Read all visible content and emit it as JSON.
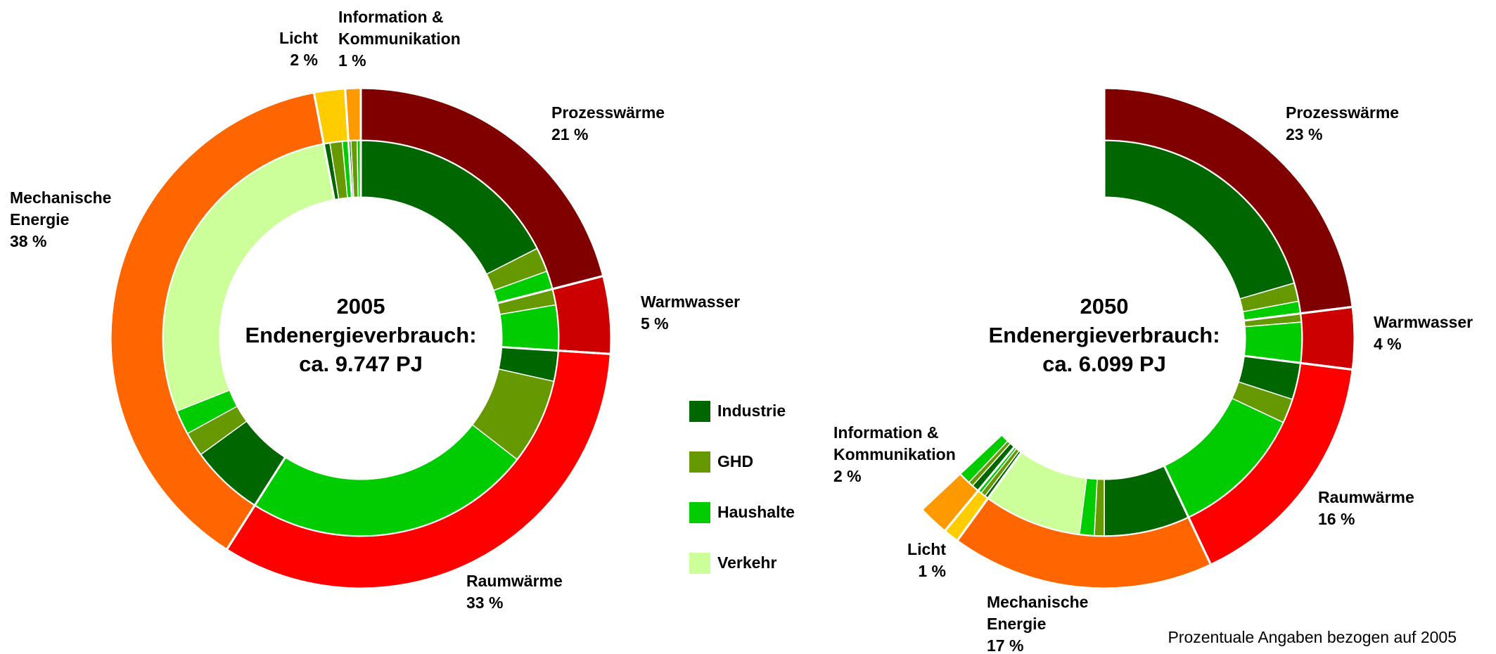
{
  "chart_data": {
    "type": "nested-donut",
    "categories": [
      "Prozesswärme",
      "Warmwasser",
      "Raumwärme",
      "Mechanische Energie",
      "Licht",
      "Information & Kommunikation"
    ],
    "category_colors": [
      "#800000",
      "#cc0000",
      "#ff0000",
      "#ff6600",
      "#ffcc00",
      "#ff9900"
    ],
    "series": [
      {
        "name": "Industrie",
        "color": "#006600"
      },
      {
        "name": "GHD",
        "color": "#669900"
      },
      {
        "name": "Haushalte",
        "color": "#00cc00"
      },
      {
        "name": "Verkehr",
        "color": "#ccff99"
      }
    ],
    "panels": [
      {
        "title_lines": [
          "2005",
          "Endenergieverbrauch:",
          "ca. 9.747 PJ"
        ],
        "values": [
          21,
          5,
          33,
          38,
          2,
          1
        ],
        "value_labels": [
          "21 %",
          "5 %",
          "33 %",
          "38 %",
          "2 %",
          "1 %"
        ],
        "series_values": [
          [
            17.5,
            0,
            2.5,
            6,
            0.5,
            0.2
          ],
          [
            2,
            1.3,
            7,
            2,
            1,
            0.5
          ],
          [
            1.5,
            3.7,
            23.5,
            2,
            0.5,
            0.3
          ],
          [
            0,
            0,
            0,
            28,
            0,
            0
          ]
        ]
      },
      {
        "title_lines": [
          "2050",
          "Endenergieverbrauch:",
          "ca. 6.099 PJ"
        ],
        "values": [
          23,
          4,
          16,
          17,
          1,
          2
        ],
        "value_labels": [
          "23 %",
          "4 %",
          "16 %",
          "17 %",
          "1 %",
          "2 %"
        ],
        "series_values": [
          [
            20.5,
            0,
            3,
            7,
            0.3,
            0.6
          ],
          [
            1.5,
            0.7,
            2,
            0.8,
            0.4,
            0.4
          ],
          [
            1,
            3.3,
            11,
            1.2,
            0.3,
            1
          ],
          [
            0,
            0,
            0,
            8,
            0,
            0
          ]
        ]
      }
    ],
    "note": "Prozentuale Angaben bezogen auf 2005"
  }
}
